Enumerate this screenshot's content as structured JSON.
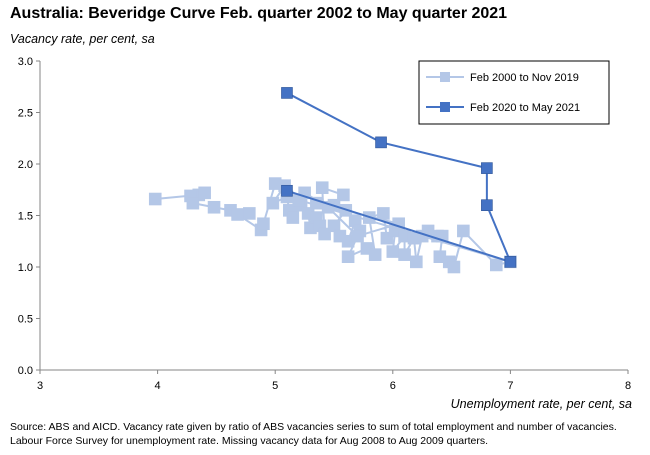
{
  "title": "Australia: Beveridge Curve Feb. quarter 2002 to May quarter 2021",
  "source_lines": [
    "Source: ABS and AICD.  Vacancy rate given by ratio of ABS vacancies series to sum of total employment and number of vacancies.",
    "Labour Force Survey for unemployment rate.  Missing vacancy data for Aug 2008 to Aug 2009 quarters."
  ],
  "chart_data": {
    "type": "scatter",
    "title": "Australia: Beveridge Curve Feb. quarter 2002 to May quarter 2021",
    "xlabel": "Unemployment rate, per cent, sa",
    "ylabel": "Vacancy rate, per cent, sa",
    "xlim": [
      3,
      8
    ],
    "ylim": [
      0,
      3.0
    ],
    "x_ticks": [
      3,
      4,
      5,
      6,
      7,
      8
    ],
    "y_ticks": [
      0.0,
      0.5,
      1.0,
      1.5,
      2.0,
      2.5,
      3.0
    ],
    "y_tick_labels": [
      "0.0",
      "0.5",
      "1.0",
      "1.5",
      "2.0",
      "2.5",
      "3.0"
    ],
    "grid": false,
    "legend_position": "top-right",
    "series": [
      {
        "name": "Feb 2000 to Nov 2019",
        "color": "#b4c7e7",
        "marker": "square",
        "points": [
          [
            3.98,
            1.66
          ],
          [
            4.35,
            1.7
          ],
          [
            4.28,
            1.69
          ],
          [
            4.4,
            1.72
          ],
          [
            4.3,
            1.62
          ],
          [
            4.48,
            1.58
          ],
          [
            4.62,
            1.55
          ],
          [
            4.78,
            1.52
          ],
          [
            4.68,
            1.51
          ],
          [
            4.88,
            1.36
          ],
          [
            4.9,
            1.42
          ],
          [
            5.0,
            1.81
          ],
          [
            5.08,
            1.79
          ],
          [
            4.98,
            1.62
          ],
          [
            5.1,
            1.68
          ],
          [
            5.12,
            1.55
          ],
          [
            5.15,
            1.48
          ],
          [
            5.22,
            1.6
          ],
          [
            5.28,
            1.52
          ],
          [
            5.3,
            1.38
          ],
          [
            5.35,
            1.48
          ],
          [
            5.38,
            1.4
          ],
          [
            5.42,
            1.32
          ],
          [
            5.4,
            1.77
          ],
          [
            5.58,
            1.7
          ],
          [
            5.5,
            1.6
          ],
          [
            5.6,
            1.55
          ],
          [
            5.5,
            1.4
          ],
          [
            5.55,
            1.3
          ],
          [
            5.62,
            1.25
          ],
          [
            5.68,
            1.45
          ],
          [
            5.72,
            1.35
          ],
          [
            5.62,
            1.1
          ],
          [
            5.78,
            1.18
          ],
          [
            5.85,
            1.12
          ],
          [
            5.8,
            1.48
          ],
          [
            5.92,
            1.52
          ],
          [
            5.95,
            1.28
          ],
          [
            6.02,
            1.35
          ],
          [
            6.0,
            1.15
          ],
          [
            6.1,
            1.3
          ],
          [
            6.1,
            1.12
          ],
          [
            6.18,
            1.28
          ],
          [
            6.2,
            1.05
          ],
          [
            6.25,
            1.3
          ],
          [
            6.3,
            1.35
          ],
          [
            6.38,
            1.3
          ],
          [
            6.42,
            1.3
          ],
          [
            6.4,
            1.1
          ],
          [
            6.48,
            1.05
          ],
          [
            6.52,
            1.0
          ],
          [
            6.6,
            1.35
          ],
          [
            6.88,
            1.02
          ],
          [
            7.0,
            1.05
          ],
          [
            5.2,
            1.65
          ],
          [
            5.25,
            1.72
          ],
          [
            5.45,
            1.58
          ],
          [
            5.7,
            1.3
          ],
          [
            6.05,
            1.42
          ],
          [
            5.35,
            1.62
          ]
        ]
      },
      {
        "name": "Feb 2020 to May 2021",
        "color": "#4472c4",
        "marker": "square",
        "points": [
          [
            5.1,
            1.74
          ],
          [
            7.0,
            1.05
          ],
          [
            6.8,
            1.6
          ],
          [
            6.8,
            1.96
          ],
          [
            5.9,
            2.21
          ],
          [
            5.1,
            2.69
          ]
        ]
      }
    ]
  }
}
